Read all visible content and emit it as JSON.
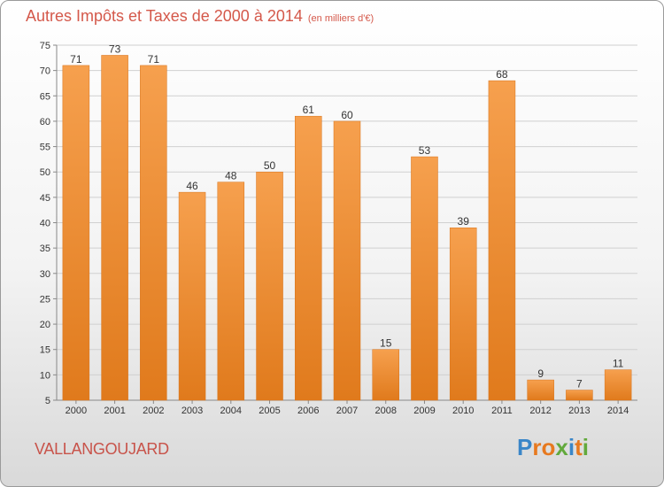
{
  "title": "Autres Impôts et Taxes de 2000 à 2014",
  "title_unit": "(en milliers d'€)",
  "footer_label": "VALLANGOUJARD",
  "logo": {
    "text": "Proxiti",
    "letter_colors": [
      "#3a86c8",
      "#e7791f",
      "#e7791f",
      "#62a93c",
      "#3a86c8",
      "#e7791f",
      "#62a93c"
    ]
  },
  "chart_data": {
    "type": "bar",
    "title": "Autres Impôts et Taxes de 2000 à 2014",
    "unit": "(en milliers d'€)",
    "categories": [
      "2000",
      "2001",
      "2002",
      "2003",
      "2004",
      "2005",
      "2006",
      "2007",
      "2008",
      "2009",
      "2010",
      "2011",
      "2012",
      "2013",
      "2014"
    ],
    "values": [
      71,
      73,
      71,
      46,
      48,
      50,
      61,
      60,
      15,
      53,
      39,
      68,
      9,
      7,
      11
    ],
    "ylim": [
      5,
      75
    ],
    "yticks": [
      5,
      10,
      15,
      20,
      25,
      30,
      35,
      40,
      45,
      50,
      55,
      60,
      65,
      70,
      75
    ],
    "grid": true,
    "bar_color_light": "#f6a04e",
    "bar_color_dark": "#e07a1c"
  }
}
